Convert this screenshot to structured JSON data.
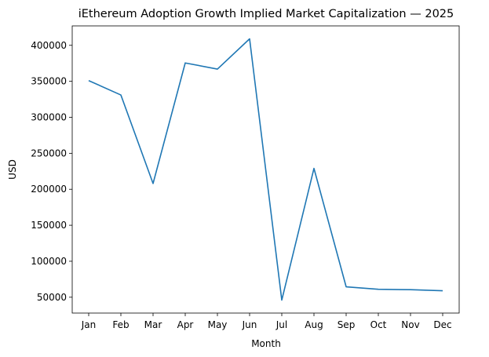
{
  "chart_data": {
    "type": "line",
    "title": "iEthereum Adoption Growth Implied Market Capitalization — 2025",
    "xlabel": "Month",
    "ylabel": "USD",
    "categories": [
      "Jan",
      "Feb",
      "Mar",
      "Apr",
      "May",
      "Jun",
      "Jul",
      "Aug",
      "Sep",
      "Oct",
      "Nov",
      "Dec"
    ],
    "series": [
      {
        "name": "Implied Market Capitalization",
        "color": "#1f77b4",
        "values": [
          351000,
          331000,
          208000,
          375500,
          367000,
          409000,
          46000,
          229000,
          64500,
          61000,
          60500,
          59000
        ]
      }
    ],
    "yticks": [
      50000,
      100000,
      150000,
      200000,
      250000,
      300000,
      350000,
      400000
    ],
    "ytick_labels": [
      "50000",
      "100000",
      "150000",
      "200000",
      "250000",
      "300000",
      "350000",
      "400000"
    ],
    "ylim": [
      28000,
      427000
    ],
    "grid": false,
    "legend": "none"
  }
}
